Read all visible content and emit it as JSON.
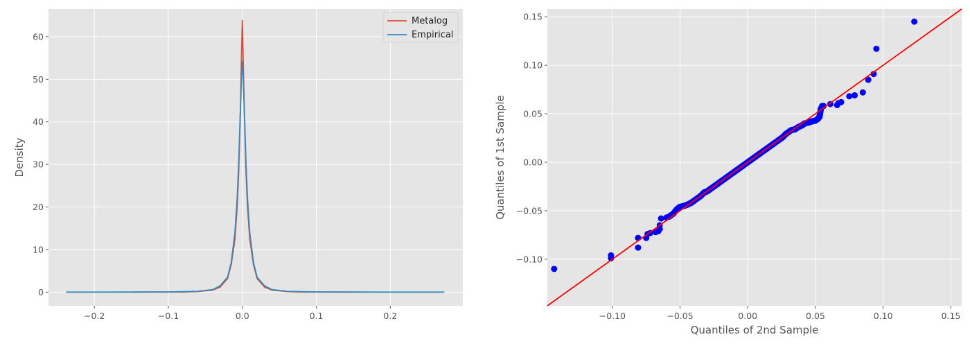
{
  "chart_data": [
    {
      "type": "line",
      "title": "",
      "xlabel": "",
      "ylabel": "Density",
      "xlim": [
        -0.262,
        0.298
      ],
      "ylim": [
        -3.2,
        66.5
      ],
      "xticks": [
        -0.2,
        -0.1,
        0.0,
        0.1,
        0.2
      ],
      "xtick_labels": [
        "−0.2",
        "−0.1",
        "0.0",
        "0.1",
        "0.2"
      ],
      "yticks": [
        0,
        10,
        20,
        30,
        40,
        50,
        60
      ],
      "ytick_labels": [
        "0",
        "10",
        "20",
        "30",
        "40",
        "50",
        "60"
      ],
      "grid": true,
      "legend": {
        "position": "top-right",
        "entries": [
          "Metalog",
          "Empirical"
        ]
      },
      "series": [
        {
          "name": "Metalog",
          "color": "#e24a33",
          "x": [
            -0.15,
            -0.08,
            -0.06,
            -0.04,
            -0.03,
            -0.02,
            -0.015,
            -0.01,
            -0.007,
            -0.005,
            -0.003,
            -0.002,
            -0.001,
            0.0,
            0.0008,
            0.002,
            0.003,
            0.005,
            0.007,
            0.01,
            0.015,
            0.02,
            0.03,
            0.04,
            0.06,
            0.08,
            0.15
          ],
          "y": [
            0.02,
            0.05,
            0.15,
            0.5,
            1.2,
            3.2,
            6.5,
            12.5,
            20,
            28,
            40,
            48,
            57,
            63.8,
            57,
            48,
            40,
            28,
            20,
            12.5,
            6.5,
            3.2,
            1.2,
            0.5,
            0.15,
            0.05,
            0.02
          ]
        },
        {
          "name": "Empirical",
          "color": "#348abd",
          "x": [
            -0.238,
            -0.2,
            -0.15,
            -0.1,
            -0.06,
            -0.04,
            -0.03,
            -0.02,
            -0.015,
            -0.01,
            -0.007,
            -0.005,
            -0.003,
            -0.001,
            0.0,
            0.001,
            0.003,
            0.005,
            0.007,
            0.01,
            0.015,
            0.02,
            0.03,
            0.04,
            0.06,
            0.1,
            0.15,
            0.2,
            0.273
          ],
          "y": [
            0.02,
            0.02,
            0.03,
            0.05,
            0.2,
            0.6,
            1.5,
            3.5,
            7,
            14,
            22,
            30,
            41,
            51,
            54.2,
            51,
            41,
            30,
            22,
            14,
            7,
            3.5,
            1.5,
            0.6,
            0.2,
            0.05,
            0.03,
            0.02,
            0.02
          ]
        }
      ]
    },
    {
      "type": "scatter",
      "title": "",
      "xlabel": "Quantiles of 2nd Sample",
      "ylabel": "Quantiles of 1st Sample",
      "xlim": [
        -0.148,
        0.158
      ],
      "ylim": [
        -0.148,
        0.158
      ],
      "xticks": [
        -0.1,
        -0.05,
        0.0,
        0.05,
        0.1,
        0.15
      ],
      "xtick_labels": [
        "−0.10",
        "−0.05",
        "0.00",
        "0.05",
        "0.10",
        "0.15"
      ],
      "yticks": [
        -0.1,
        -0.05,
        0.0,
        0.05,
        0.1,
        0.15
      ],
      "ytick_labels": [
        "−0.10",
        "−0.05",
        "0.00",
        "0.05",
        "0.10",
        "0.15"
      ],
      "grid": true,
      "reference_line": {
        "color": "#ff0000",
        "slope": 1,
        "intercept": 0
      },
      "point_color": "#0000ff",
      "points": [
        [
          -0.143,
          -0.11
        ],
        [
          -0.101,
          -0.099
        ],
        [
          -0.101,
          -0.096
        ],
        [
          -0.081,
          -0.088
        ],
        [
          -0.081,
          -0.078
        ],
        [
          -0.075,
          -0.078
        ],
        [
          -0.074,
          -0.074
        ],
        [
          -0.072,
          -0.073
        ],
        [
          -0.068,
          -0.072
        ],
        [
          -0.066,
          -0.071
        ],
        [
          -0.065,
          -0.069
        ],
        [
          -0.065,
          -0.065
        ],
        [
          -0.064,
          -0.058
        ],
        [
          -0.06,
          -0.057
        ],
        [
          -0.058,
          -0.056
        ],
        [
          -0.055,
          -0.053
        ],
        [
          -0.052,
          -0.048
        ],
        [
          -0.05,
          -0.046
        ],
        [
          -0.047,
          -0.045
        ],
        [
          -0.045,
          -0.044
        ],
        [
          -0.042,
          -0.042
        ],
        [
          -0.04,
          -0.04
        ],
        [
          -0.037,
          -0.037
        ],
        [
          -0.035,
          -0.035
        ],
        [
          -0.032,
          -0.031
        ],
        [
          -0.03,
          -0.03
        ],
        [
          -0.028,
          -0.028
        ],
        [
          -0.026,
          -0.026
        ],
        [
          -0.024,
          -0.024
        ],
        [
          -0.022,
          -0.022
        ],
        [
          -0.02,
          -0.02
        ],
        [
          -0.018,
          -0.018
        ],
        [
          -0.016,
          -0.016
        ],
        [
          -0.014,
          -0.014
        ],
        [
          -0.012,
          -0.012
        ],
        [
          -0.01,
          -0.01
        ],
        [
          -0.008,
          -0.008
        ],
        [
          -0.006,
          -0.006
        ],
        [
          -0.004,
          -0.004
        ],
        [
          -0.002,
          -0.002
        ],
        [
          0.0,
          0.0
        ],
        [
          0.002,
          0.002
        ],
        [
          0.004,
          0.004
        ],
        [
          0.006,
          0.006
        ],
        [
          0.008,
          0.008
        ],
        [
          0.01,
          0.01
        ],
        [
          0.012,
          0.012
        ],
        [
          0.014,
          0.014
        ],
        [
          0.016,
          0.016
        ],
        [
          0.018,
          0.018
        ],
        [
          0.02,
          0.02
        ],
        [
          0.022,
          0.022
        ],
        [
          0.024,
          0.024
        ],
        [
          0.026,
          0.026
        ],
        [
          0.028,
          0.029
        ],
        [
          0.03,
          0.031
        ],
        [
          0.032,
          0.033
        ],
        [
          0.035,
          0.034
        ],
        [
          0.037,
          0.036
        ],
        [
          0.04,
          0.038
        ],
        [
          0.042,
          0.04
        ],
        [
          0.045,
          0.041
        ],
        [
          0.047,
          0.042
        ],
        [
          0.05,
          0.043
        ],
        [
          0.052,
          0.045
        ],
        [
          0.053,
          0.047
        ],
        [
          0.054,
          0.055
        ],
        [
          0.055,
          0.058
        ],
        [
          0.056,
          0.058
        ],
        [
          0.061,
          0.06
        ],
        [
          0.066,
          0.059
        ],
        [
          0.067,
          0.061
        ],
        [
          0.069,
          0.062
        ],
        [
          0.075,
          0.068
        ],
        [
          0.079,
          0.069
        ],
        [
          0.085,
          0.072
        ],
        [
          0.089,
          0.085
        ],
        [
          0.093,
          0.091
        ],
        [
          0.095,
          0.117
        ],
        [
          0.123,
          0.145
        ]
      ]
    }
  ]
}
